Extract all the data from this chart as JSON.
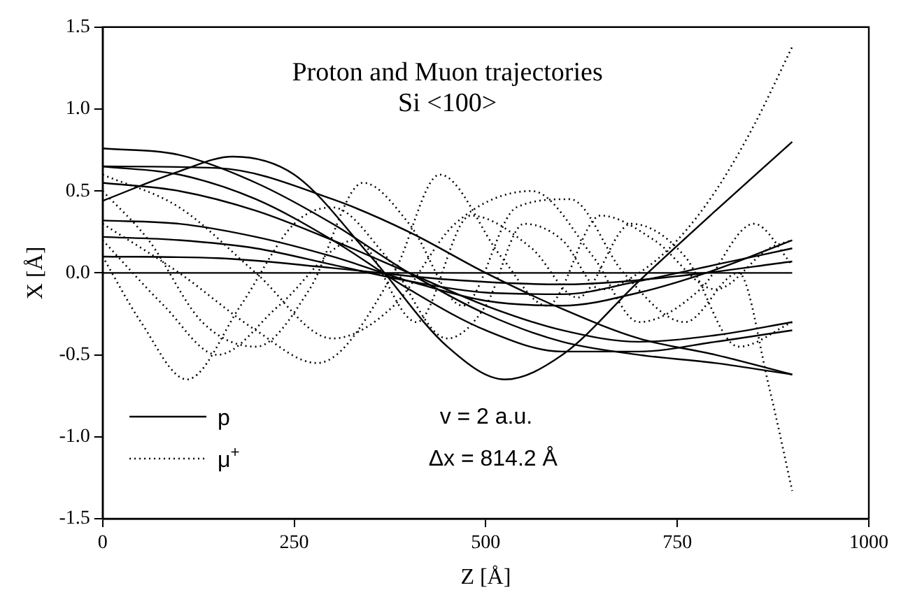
{
  "chart_data": {
    "type": "line",
    "title": "Proton and Muon trajectories",
    "subtitle": "Si <100>",
    "xlabel": "Z [Å]",
    "ylabel": "X [Å]",
    "annotations": [
      "v = 2 a.u.",
      "Δx = 814.2 Å"
    ],
    "xlim": [
      0,
      1000
    ],
    "xticks": [
      0,
      250,
      500,
      750,
      1000
    ],
    "ylim": [
      -1.5,
      1.5
    ],
    "yticks": [
      {
        "value": -1.5,
        "label": "-1.5"
      },
      {
        "value": -1.0,
        "label": "-1.0"
      },
      {
        "value": -0.5,
        "label": "-0.5"
      },
      {
        "value": 0,
        "label": "0.0"
      },
      {
        "value": 0.5,
        "label": "0.5"
      },
      {
        "value": 1.0,
        "label": "1.0"
      },
      {
        "value": 1.5,
        "label": "1.5"
      }
    ],
    "grid": false,
    "legend": "bottom left",
    "marker": "none",
    "series": [
      {
        "name": "p",
        "color": "#000000",
        "line_style": "solid",
        "x": [
          0,
          900
        ],
        "values": [
          0,
          0
        ]
      },
      {
        "color": "#000000",
        "line_style": "solid",
        "x": [
          0,
          100,
          170,
          250,
          350,
          450,
          525,
          600,
          700,
          800,
          900
        ],
        "values": [
          0.44,
          0.62,
          0.71,
          0.6,
          0.1,
          -0.45,
          -0.65,
          -0.5,
          -0.05,
          0.38,
          0.8
        ]
      },
      {
        "color": "#000000",
        "line_style": "solid",
        "x": [
          0,
          100,
          200,
          300,
          400,
          500,
          600,
          700,
          800,
          900
        ],
        "values": [
          0.76,
          0.72,
          0.55,
          0.3,
          0.0,
          -0.25,
          -0.42,
          -0.5,
          -0.55,
          -0.62
        ]
      },
      {
        "color": "#000000",
        "line_style": "solid",
        "x": [
          0,
          150,
          300,
          400,
          500,
          600,
          700,
          800,
          900
        ],
        "values": [
          0.65,
          0.64,
          0.45,
          0.25,
          0.0,
          -0.22,
          -0.4,
          -0.5,
          -0.62
        ]
      },
      {
        "color": "#000000",
        "line_style": "solid",
        "x": [
          0,
          100,
          200,
          300,
          400,
          500,
          600,
          700,
          800,
          900
        ],
        "values": [
          0.65,
          0.6,
          0.45,
          0.2,
          -0.1,
          -0.35,
          -0.48,
          -0.48,
          -0.42,
          -0.35
        ]
      },
      {
        "color": "#000000",
        "line_style": "solid",
        "x": [
          0,
          100,
          200,
          300,
          400,
          500,
          600,
          700,
          800,
          900
        ],
        "values": [
          0.55,
          0.5,
          0.38,
          0.2,
          0.0,
          -0.2,
          -0.35,
          -0.42,
          -0.38,
          -0.3
        ]
      },
      {
        "color": "#000000",
        "line_style": "solid",
        "x": [
          0,
          100,
          200,
          300,
          400,
          500,
          600,
          700,
          800,
          900
        ],
        "values": [
          0.32,
          0.3,
          0.22,
          0.1,
          -0.05,
          -0.17,
          -0.2,
          -0.12,
          0.02,
          0.2
        ]
      },
      {
        "color": "#000000",
        "line_style": "solid",
        "x": [
          0,
          100,
          200,
          300,
          400,
          500,
          600,
          700,
          800,
          900
        ],
        "values": [
          0.22,
          0.2,
          0.15,
          0.05,
          -0.05,
          -0.12,
          -0.13,
          -0.05,
          0.05,
          0.15
        ]
      },
      {
        "color": "#000000",
        "line_style": "solid",
        "x": [
          0,
          150,
          300,
          450,
          600,
          750,
          900
        ],
        "values": [
          0.1,
          0.09,
          0.03,
          -0.04,
          -0.07,
          -0.02,
          0.07
        ]
      },
      {
        "name": "μ$^{+}$",
        "color": "#000000",
        "line_style": "dotted",
        "x": [
          0,
          50,
          110,
          180,
          250,
          300,
          370,
          450,
          500,
          550,
          600,
          650,
          700,
          750,
          800,
          850,
          900
        ],
        "values": [
          0.1,
          -0.3,
          -0.65,
          -0.2,
          0.3,
          0.4,
          0.1,
          -0.4,
          -0.2,
          0.3,
          0.2,
          -0.1,
          0.0,
          0.2,
          0.5,
          0.9,
          1.38
        ]
      },
      {
        "color": "#000000",
        "line_style": "dotted",
        "x": [
          0,
          60,
          130,
          200,
          270,
          340,
          400,
          470,
          540,
          610,
          680,
          760,
          830,
          870,
          900
        ],
        "values": [
          0.5,
          0.2,
          -0.3,
          -0.45,
          -0.1,
          0.55,
          0.3,
          -0.2,
          0.4,
          0.45,
          0.0,
          -0.3,
          0.0,
          -0.7,
          -1.33
        ]
      },
      {
        "color": "#000000",
        "line_style": "dotted",
        "x": [
          0,
          100,
          200,
          280,
          380,
          440,
          520,
          580,
          650,
          720,
          800,
          870,
          900
        ],
        "values": [
          0.3,
          0.0,
          -0.35,
          -0.55,
          0.0,
          0.6,
          0.1,
          -0.2,
          0.35,
          0.2,
          -0.1,
          0.15,
          0.2
        ]
      },
      {
        "color": "#000000",
        "line_style": "dotted",
        "x": [
          0,
          100,
          200,
          300,
          380,
          460,
          560,
          640,
          700,
          780,
          850,
          900
        ],
        "values": [
          0.6,
          0.4,
          0.0,
          -0.4,
          -0.2,
          0.3,
          0.5,
          0.1,
          -0.3,
          -0.1,
          0.3,
          0.05
        ]
      },
      {
        "color": "#000000",
        "line_style": "dotted",
        "x": [
          0,
          80,
          150,
          230,
          330,
          410,
          480,
          560,
          620,
          690,
          760,
          830,
          900
        ],
        "values": [
          0.2,
          -0.2,
          -0.5,
          -0.2,
          0.2,
          -0.3,
          0.35,
          0.15,
          -0.15,
          0.3,
          0.1,
          -0.45,
          -0.3
        ]
      }
    ]
  }
}
